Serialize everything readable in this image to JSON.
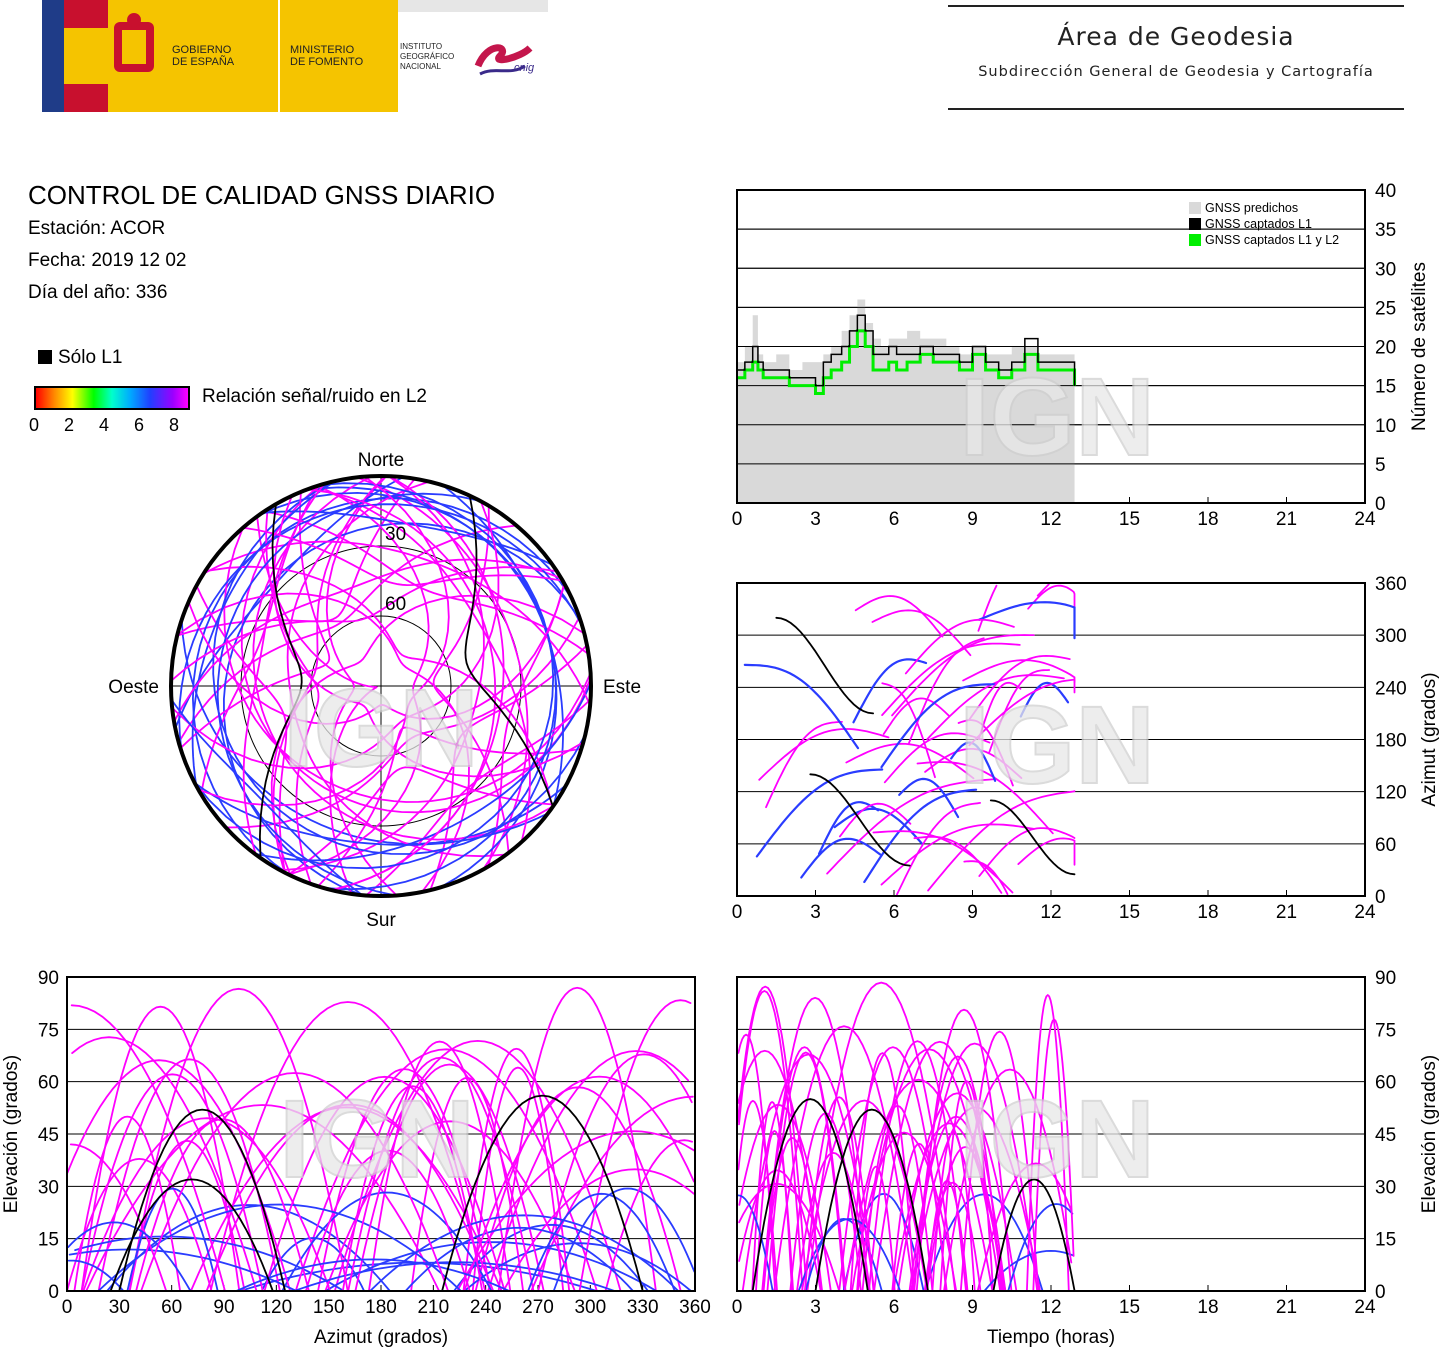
{
  "header": {
    "gov": "GOBIERNO\nDE ESPAÑA",
    "ministry": "MINISTERIO\nDE FOMENTO",
    "institute": "INSTITUTO\nGEOGRÁFICO\nNACIONAL",
    "cnig": "cnig",
    "area_title": "Área de Geodesia",
    "area_subtitle": "Subdirección General de Geodesia y Cartografía"
  },
  "info": {
    "title": "CONTROL DE CALIDAD GNSS DIARIO",
    "station": "Estación: ACOR",
    "date": "Fecha: 2019 12 02",
    "doy": "Día del año: 336",
    "only_l1": "Sólo L1",
    "snr_label": "Relación señal/ruido en L2",
    "snr_ticks": [
      "0",
      "2",
      "4",
      "6",
      "8"
    ]
  },
  "watermark": "IGN",
  "colors": {
    "l1l2_snr_high": "#ff00ff",
    "snr_mid": "#2a3cff",
    "only_l1": "#000000",
    "predicted": "#d9d9d9",
    "captured_l1l2": "#00ee00"
  },
  "chart_data": [
    {
      "type": "line",
      "id": "satellite-count",
      "ylabel": "Número de satélites",
      "x_ticks": [
        "0",
        "3",
        "6",
        "9",
        "12",
        "15",
        "18",
        "21",
        "24"
      ],
      "y_ticks": [
        "0",
        "5",
        "10",
        "15",
        "20",
        "25",
        "30",
        "35",
        "40"
      ],
      "xlim": [
        0,
        24
      ],
      "ylim": [
        0,
        40
      ],
      "grid": true,
      "legend_position": "top-right",
      "series": [
        {
          "name": "GNSS predichos",
          "type": "area",
          "x": [
            0,
            0.3,
            0.6,
            0.8,
            1.0,
            1.5,
            2.0,
            2.5,
            3.0,
            3.3,
            3.6,
            4.0,
            4.3,
            4.6,
            4.9,
            5.2,
            5.5,
            5.8,
            6.1,
            6.5,
            7.0,
            7.5,
            8.0,
            8.5,
            9.0,
            9.5,
            10.0,
            10.5,
            11.0,
            11.5,
            12.0,
            12.5,
            12.9
          ],
          "y": [
            18,
            20,
            24,
            19,
            18,
            19,
            17,
            18,
            18,
            19,
            20,
            22,
            24,
            26,
            23,
            21,
            20,
            21,
            21,
            22,
            21,
            21,
            20,
            19,
            20,
            19,
            19,
            20,
            20,
            19,
            19,
            19,
            17
          ]
        },
        {
          "name": "GNSS captados L1",
          "x": [
            0,
            0.3,
            0.6,
            0.8,
            1.0,
            1.5,
            2.0,
            2.5,
            3.0,
            3.3,
            3.6,
            4.0,
            4.3,
            4.6,
            4.9,
            5.2,
            5.5,
            5.8,
            6.1,
            6.5,
            7.0,
            7.5,
            8.0,
            8.5,
            9.0,
            9.5,
            10.0,
            10.5,
            11.0,
            11.5,
            12.0,
            12.5,
            12.9
          ],
          "y": [
            17,
            18,
            20,
            18,
            17,
            17,
            16,
            16,
            15,
            18,
            19,
            20,
            22,
            24,
            22,
            19,
            19,
            20,
            19,
            19,
            20,
            19,
            19,
            18,
            20,
            18,
            17,
            18,
            21,
            18,
            18,
            18,
            15
          ]
        },
        {
          "name": "GNSS captados L1 y L2",
          "x": [
            0,
            0.3,
            0.6,
            0.8,
            1.0,
            1.5,
            2.0,
            2.5,
            3.0,
            3.3,
            3.6,
            4.0,
            4.3,
            4.6,
            4.9,
            5.2,
            5.5,
            5.8,
            6.1,
            6.5,
            7.0,
            7.5,
            8.0,
            8.5,
            9.0,
            9.5,
            10.0,
            10.5,
            11.0,
            11.5,
            12.0,
            12.5,
            12.9
          ],
          "y": [
            16,
            17,
            18,
            17,
            16,
            16,
            15,
            15,
            14,
            16,
            17,
            18,
            20,
            22,
            20,
            17,
            17,
            18,
            17,
            18,
            19,
            18,
            18,
            17,
            19,
            17,
            16,
            17,
            19,
            17,
            17,
            17,
            15
          ]
        }
      ]
    },
    {
      "type": "scatter",
      "id": "azimuth-vs-time",
      "ylabel": "Azimut (grados)",
      "x_ticks": [
        "0",
        "3",
        "6",
        "9",
        "12",
        "15",
        "18",
        "21",
        "24"
      ],
      "y_ticks": [
        "0",
        "60",
        "120",
        "180",
        "240",
        "300",
        "360"
      ],
      "xlim": [
        0,
        24
      ],
      "ylim": [
        0,
        360
      ],
      "grid": true
    },
    {
      "type": "scatter",
      "id": "elevation-vs-azimuth",
      "xlabel": "Azimut (grados)",
      "ylabel": "Elevación (grados)",
      "x_ticks": [
        "0",
        "30",
        "60",
        "90",
        "120",
        "150",
        "180",
        "210",
        "240",
        "270",
        "300",
        "330",
        "360"
      ],
      "y_ticks": [
        "0",
        "15",
        "30",
        "45",
        "60",
        "75",
        "90"
      ],
      "xlim": [
        0,
        360
      ],
      "ylim": [
        0,
        90
      ],
      "grid": true
    },
    {
      "type": "scatter",
      "id": "elevation-vs-time",
      "xlabel": "Tiempo (horas)",
      "ylabel": "Elevación (grados)",
      "x_ticks": [
        "0",
        "3",
        "6",
        "9",
        "12",
        "15",
        "18",
        "21",
        "24"
      ],
      "y_ticks": [
        "0",
        "15",
        "30",
        "45",
        "60",
        "75",
        "90"
      ],
      "xlim": [
        0,
        24
      ],
      "ylim": [
        0,
        90
      ],
      "grid": true
    },
    {
      "type": "scatter",
      "id": "skyplot",
      "labels": {
        "north": "Norte",
        "south": "Sur",
        "east": "Este",
        "west": "Oeste"
      },
      "rings": [
        "30",
        "60"
      ]
    }
  ]
}
